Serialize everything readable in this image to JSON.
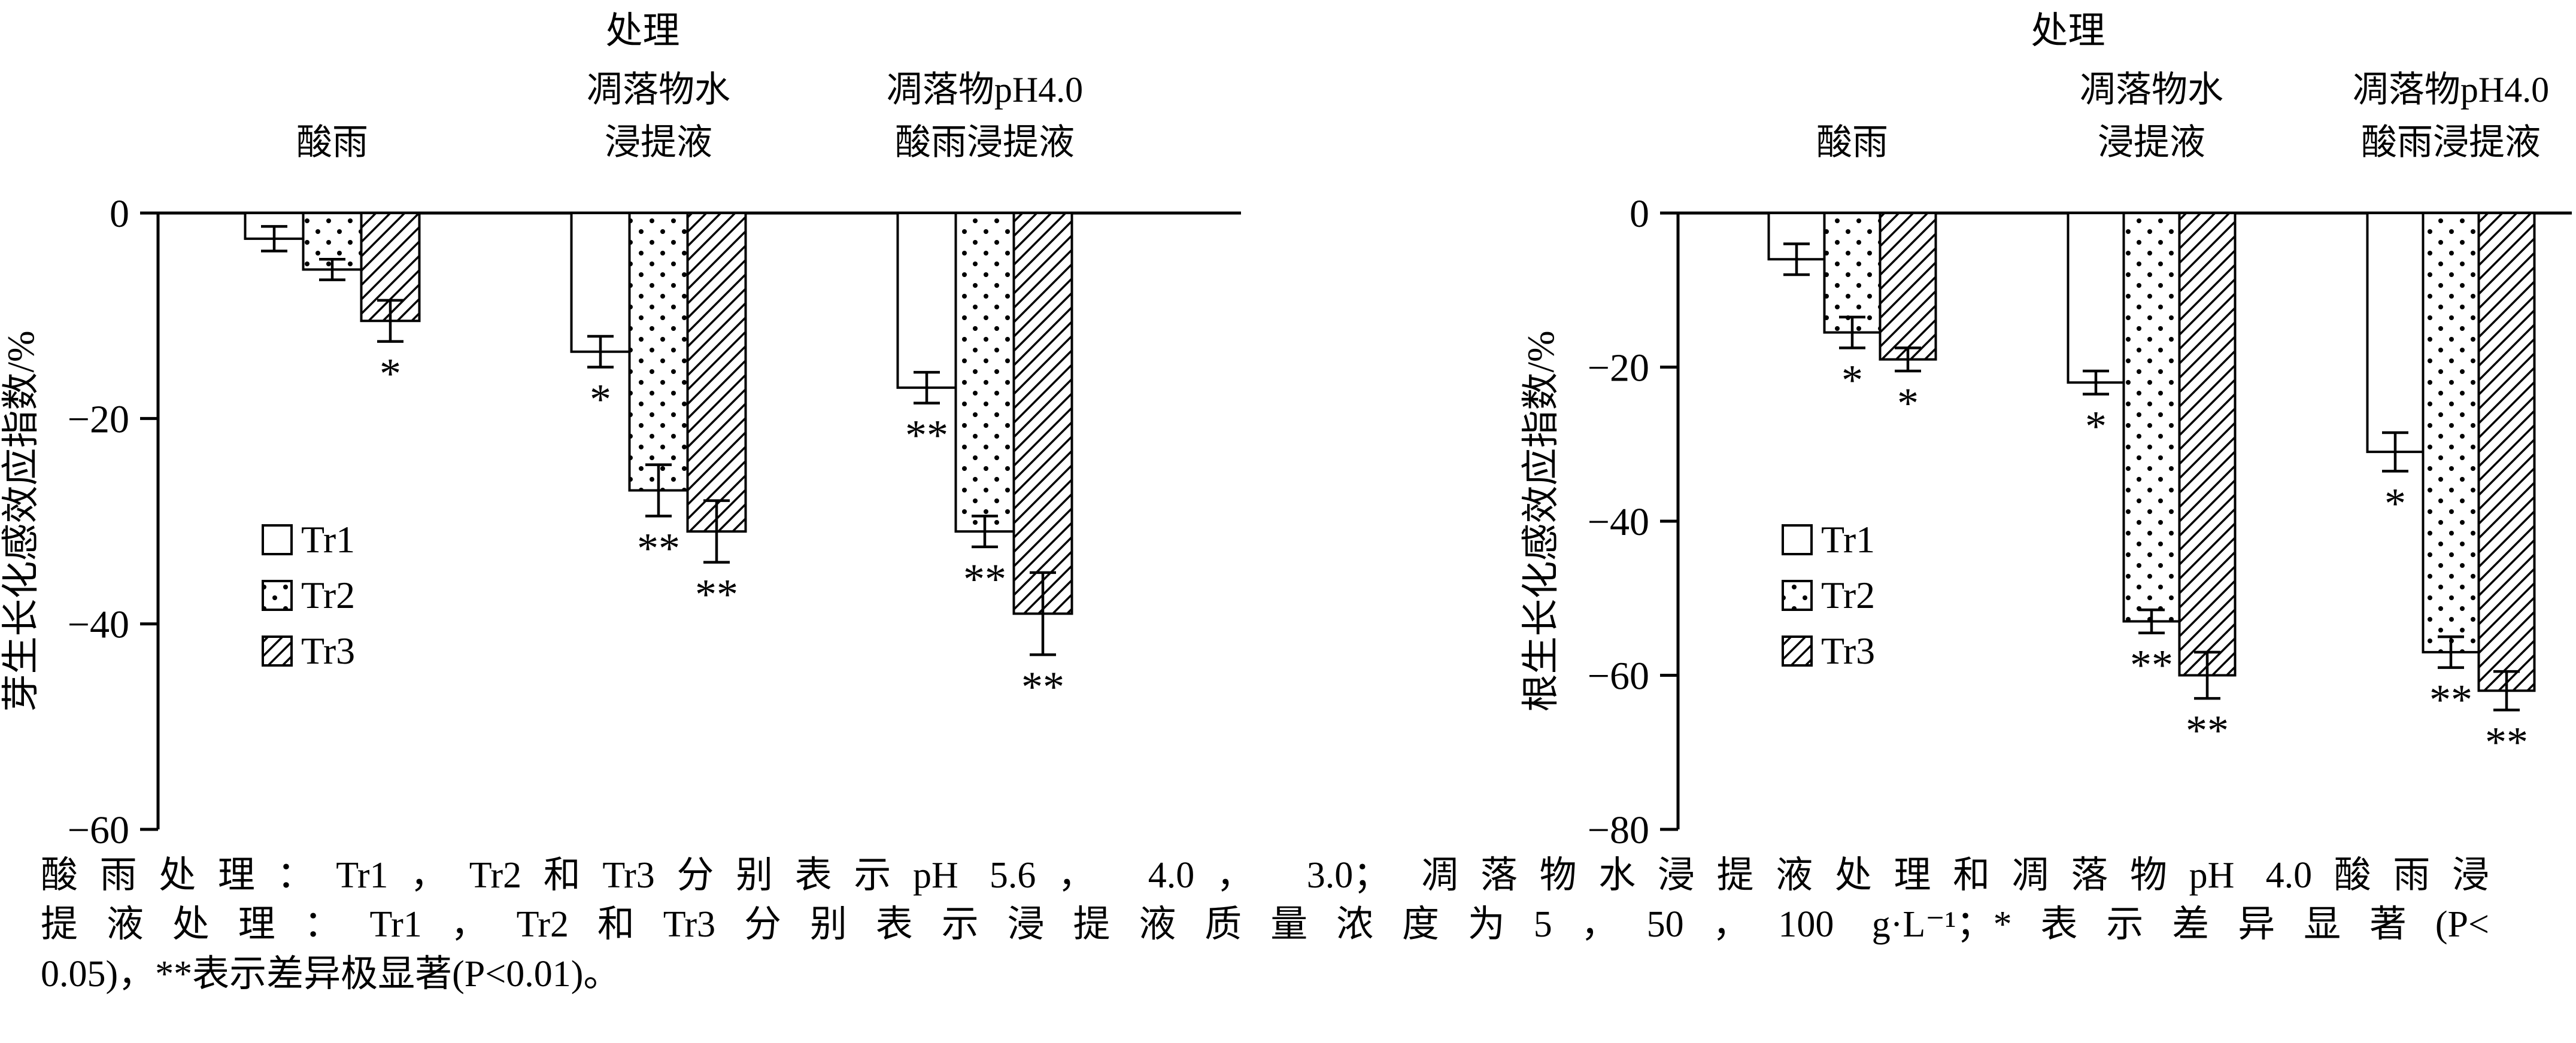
{
  "page": {
    "background": "#ffffff",
    "ink": "#000000"
  },
  "chart_data": [
    {
      "type": "bar",
      "name": "shoot-growth",
      "top_title": "处理",
      "ylabel": "芽生长化感效应指数/%",
      "ylim": [
        -60,
        0
      ],
      "yticks": [
        0,
        -20,
        -40,
        -60
      ],
      "ytick_labels": [
        "0",
        "−20",
        "−40",
        "−60"
      ],
      "grid": false,
      "legend_position": "inside-lower-left",
      "categories": [
        "酸雨",
        "凋落物水浸提液",
        "凋落物pH4.0酸雨浸提液"
      ],
      "category_label_lines": [
        [
          "酸雨"
        ],
        [
          "凋落物水",
          "浸提液"
        ],
        [
          "凋落物pH4.0",
          "酸雨浸提液"
        ]
      ],
      "series": [
        {
          "name": "Tr1",
          "pattern": "plain",
          "values": [
            -2.5,
            -13.5,
            -17
          ],
          "errors": [
            1.2,
            1.5,
            1.5
          ],
          "significance": [
            "",
            "*",
            "**"
          ]
        },
        {
          "name": "Tr2",
          "pattern": "dots",
          "values": [
            -5.5,
            -27,
            -31
          ],
          "errors": [
            1,
            2.5,
            1.5
          ],
          "significance": [
            "",
            "**",
            "**"
          ]
        },
        {
          "name": "Tr3",
          "pattern": "hatch",
          "values": [
            -10.5,
            -31,
            -39
          ],
          "errors": [
            2,
            3,
            4
          ],
          "significance": [
            "*",
            "**",
            "**"
          ]
        }
      ]
    },
    {
      "type": "bar",
      "name": "root-growth",
      "top_title": "处理",
      "ylabel": "根生长化感效应指数/%",
      "ylim": [
        -80,
        0
      ],
      "yticks": [
        0,
        -20,
        -40,
        -60,
        -80
      ],
      "ytick_labels": [
        "0",
        "−20",
        "−40",
        "−60",
        "−80"
      ],
      "grid": false,
      "legend_position": "inside-lower-left",
      "categories": [
        "酸雨",
        "凋落物水浸提液",
        "凋落物pH4.0酸雨浸提液"
      ],
      "category_label_lines": [
        [
          "酸雨"
        ],
        [
          "凋落物水",
          "浸提液"
        ],
        [
          "凋落物pH4.0",
          "酸雨浸提液"
        ]
      ],
      "series": [
        {
          "name": "Tr1",
          "pattern": "plain",
          "values": [
            -6,
            -22,
            -31
          ],
          "errors": [
            2,
            1.5,
            2.5
          ],
          "significance": [
            "",
            "*",
            "*"
          ]
        },
        {
          "name": "Tr2",
          "pattern": "dots",
          "values": [
            -15.5,
            -53,
            -57
          ],
          "errors": [
            2,
            1.5,
            2
          ],
          "significance": [
            "*",
            "**",
            "**"
          ]
        },
        {
          "name": "Tr3",
          "pattern": "hatch",
          "values": [
            -19,
            -60,
            -62
          ],
          "errors": [
            1.5,
            3,
            2.5
          ],
          "significance": [
            "*",
            "**",
            "**"
          ]
        }
      ]
    }
  ],
  "caption": {
    "lines": [
      "酸雨处理：Tr1，Tr2和Tr3分别表示pH 5.6， 4.0， 3.0； 凋落物水浸提液处理和凋落物pH 4.0酸雨浸",
      "提液处理：Tr1，Tr2和Tr3分别表示浸提液质量浓度为5，50，100 g·L⁻¹；*表示差异显著(P<",
      "0.05)，**表示差异极显著(P<0.01)。"
    ]
  }
}
